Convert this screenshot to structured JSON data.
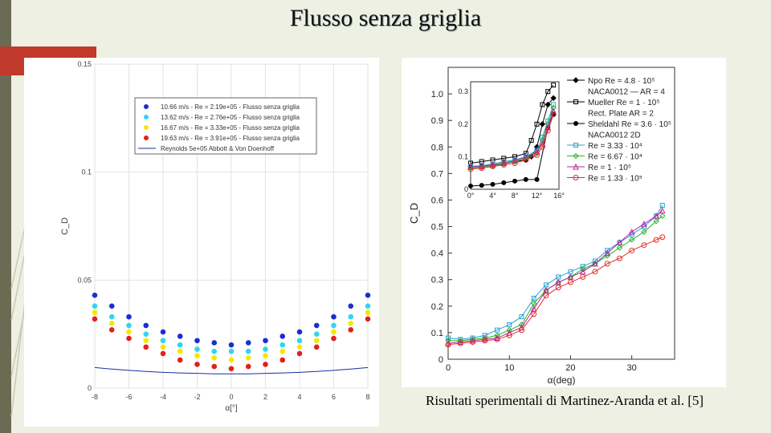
{
  "slide": {
    "title": "Flusso senza griglia",
    "caption": "Risultati sperimentali di Martinez-Aranda et al. [5]"
  },
  "chart_data": [
    {
      "type": "scatter",
      "xlabel": "α[°]",
      "ylabel": "C_D",
      "xlim": [
        -8,
        8
      ],
      "ylim": [
        0,
        0.15
      ],
      "x_ticks": [
        "-8",
        "-6",
        "-4",
        "-2",
        "0",
        "2",
        "4",
        "6",
        "8"
      ],
      "y_ticks": [
        "0",
        "0.05",
        "0.1",
        "0.15"
      ],
      "grid": true,
      "legend_position": "top-left",
      "x": [
        -8,
        -7,
        -6,
        -5,
        -4,
        -3,
        -2,
        -1,
        0,
        1,
        2,
        3,
        4,
        5,
        6,
        7,
        8
      ],
      "series": [
        {
          "name": "10.66 m/s - Re = 2.19e+05 - Flusso senza griglia",
          "color": "#1a2fd0",
          "values": [
            0.043,
            0.038,
            0.033,
            0.029,
            0.026,
            0.024,
            0.022,
            0.021,
            0.02,
            0.021,
            0.022,
            0.024,
            0.026,
            0.029,
            0.033,
            0.038,
            0.043
          ]
        },
        {
          "name": "13.62 m/s - Re = 2.76e+05 - Flusso senza griglia",
          "color": "#2fd6f0",
          "values": [
            0.038,
            0.033,
            0.029,
            0.025,
            0.022,
            0.02,
            0.018,
            0.017,
            0.017,
            0.017,
            0.018,
            0.02,
            0.022,
            0.025,
            0.029,
            0.033,
            0.038
          ]
        },
        {
          "name": "16.67 m/s - Re = 3.33e+05 - Flusso senza griglia",
          "color": "#f5e800",
          "values": [
            0.035,
            0.03,
            0.026,
            0.022,
            0.019,
            0.017,
            0.015,
            0.014,
            0.013,
            0.014,
            0.015,
            0.017,
            0.019,
            0.022,
            0.026,
            0.03,
            0.035
          ]
        },
        {
          "name": "19.63 m/s - Re = 3.91e+05 - Flusso senza griglia",
          "color": "#e0201c",
          "values": [
            0.032,
            0.027,
            0.023,
            0.019,
            0.016,
            0.013,
            0.011,
            0.01,
            0.009,
            0.01,
            0.011,
            0.013,
            0.016,
            0.019,
            0.023,
            0.027,
            0.032
          ]
        },
        {
          "name": "Reynolds 5e+05 Abbott & Von Doenhoff",
          "color": "#1a2f9a",
          "line": true,
          "values": [
            0.0095,
            0.0088,
            0.0082,
            0.0077,
            0.0073,
            0.007,
            0.0068,
            0.0066,
            0.0066,
            0.0066,
            0.0068,
            0.007,
            0.0073,
            0.0077,
            0.0082,
            0.0088,
            0.0095
          ]
        }
      ]
    },
    {
      "type": "line",
      "xlabel": "α(deg)",
      "ylabel": "C_D",
      "xlim": [
        0,
        37
      ],
      "ylim": [
        0,
        1.1
      ],
      "x_ticks": [
        "0",
        "10",
        "20",
        "30"
      ],
      "y_ticks": [
        "0",
        "0.1",
        "0.2",
        "0.3",
        "0.4",
        "0.5",
        "0.6",
        "0.7",
        "0.8",
        "0.9",
        "1.0"
      ],
      "legend_position": "top-right",
      "legend": [
        {
          "label": "Npo Re = 4.8 · 10⁵",
          "color": "#000",
          "marker": "diamond"
        },
        {
          "label": "NACA0012 — AR = 4",
          "color": "#000",
          "marker": "none"
        },
        {
          "label": "Mueller Re = 1 · 10⁵",
          "color": "#000",
          "marker": "square-open"
        },
        {
          "label": "Rect. Plate    AR = 2",
          "color": "#000",
          "marker": "none"
        },
        {
          "label": "Sheldahl Re = 3.6 · 10⁵",
          "color": "#000",
          "marker": "circle"
        },
        {
          "label": "NACA0012    2D",
          "color": "#000",
          "marker": "none"
        },
        {
          "label": "Re = 3.33 · 10⁴",
          "color": "#2a9fd6",
          "marker": "square-open"
        },
        {
          "label": "Re = 6.67 · 10⁴",
          "color": "#22b822",
          "marker": "diamond-open"
        },
        {
          "label": "Re = 1 · 10⁵",
          "color": "#b8269e",
          "marker": "triangle-open"
        },
        {
          "label": "Re = 1.33 · 10⁵",
          "color": "#e0302c",
          "marker": "circle-open"
        }
      ],
      "series": [
        {
          "name": "Re = 3.33 · 10⁴",
          "color": "#2a9fd6",
          "x": [
            0,
            2,
            4,
            6,
            8,
            10,
            12,
            14,
            16,
            18,
            20,
            22,
            24,
            26,
            28,
            30,
            32,
            34,
            35
          ],
          "values": [
            0.08,
            0.075,
            0.08,
            0.09,
            0.11,
            0.13,
            0.16,
            0.23,
            0.28,
            0.31,
            0.33,
            0.35,
            0.37,
            0.41,
            0.44,
            0.47,
            0.5,
            0.54,
            0.58
          ]
        },
        {
          "name": "Re = 6.67 · 10⁴",
          "color": "#22b822",
          "x": [
            0,
            2,
            4,
            6,
            8,
            10,
            12,
            14,
            16,
            18,
            20,
            22,
            24,
            26,
            28,
            30,
            32,
            34,
            35
          ],
          "values": [
            0.07,
            0.07,
            0.075,
            0.08,
            0.09,
            0.11,
            0.13,
            0.21,
            0.26,
            0.29,
            0.31,
            0.34,
            0.36,
            0.39,
            0.42,
            0.45,
            0.48,
            0.52,
            0.54
          ]
        },
        {
          "name": "Re = 1 · 10⁵",
          "color": "#b8269e",
          "x": [
            0,
            2,
            4,
            6,
            8,
            10,
            12,
            14,
            16,
            18,
            20,
            22,
            24,
            26,
            28,
            30,
            32,
            34,
            35
          ],
          "values": [
            0.06,
            0.065,
            0.07,
            0.075,
            0.08,
            0.1,
            0.12,
            0.19,
            0.26,
            0.29,
            0.31,
            0.33,
            0.36,
            0.4,
            0.44,
            0.48,
            0.51,
            0.54,
            0.56
          ]
        },
        {
          "name": "Re = 1.33 · 10⁵",
          "color": "#e0302c",
          "x": [
            0,
            2,
            4,
            6,
            8,
            10,
            12,
            14,
            16,
            18,
            20,
            22,
            24,
            26,
            28,
            30,
            32,
            34,
            35
          ],
          "values": [
            0.055,
            0.06,
            0.065,
            0.07,
            0.075,
            0.09,
            0.11,
            0.17,
            0.24,
            0.27,
            0.29,
            0.31,
            0.33,
            0.36,
            0.38,
            0.41,
            0.43,
            0.45,
            0.46
          ]
        }
      ],
      "inset": {
        "x_ticks": [
          "0°",
          "4°",
          "8°",
          "12°",
          "16°"
        ],
        "y_ticks": [
          "0",
          "0.1",
          "0.2",
          "0.3"
        ],
        "xlim": [
          0,
          16
        ],
        "ylim": [
          0,
          0.33
        ],
        "series": [
          {
            "name": "Npo Re = 4.8 · 10⁵",
            "color": "#000",
            "x": [
              0,
              2,
              4,
              6,
              8,
              10,
              11,
              12,
              13,
              14,
              15
            ],
            "values": [
              0.07,
              0.072,
              0.075,
              0.08,
              0.085,
              0.09,
              0.1,
              0.13,
              0.2,
              0.26,
              0.28
            ]
          },
          {
            "name": "Mueller Re = 1 · 10⁵",
            "color": "#000",
            "x": [
              0,
              2,
              4,
              6,
              8,
              10,
              11,
              12,
              13,
              14,
              15
            ],
            "values": [
              0.08,
              0.085,
              0.09,
              0.095,
              0.1,
              0.11,
              0.15,
              0.2,
              0.26,
              0.3,
              0.32
            ]
          },
          {
            "name": "Sheldahl Re = 3.6 · 10⁵",
            "color": "#000",
            "x": [
              0,
              2,
              4,
              6,
              8,
              10,
              12,
              14,
              15
            ],
            "values": [
              0.01,
              0.012,
              0.015,
              0.02,
              0.025,
              0.03,
              0.03,
              0.19,
              0.23
            ]
          },
          {
            "name": "Re = 3.33 · 10⁴",
            "color": "#2a9fd6",
            "x": [
              0,
              2,
              4,
              6,
              8,
              10,
              12,
              13,
              14,
              15
            ],
            "values": [
              0.07,
              0.072,
              0.078,
              0.085,
              0.09,
              0.1,
              0.12,
              0.16,
              0.21,
              0.26
            ]
          },
          {
            "name": "Re = 6.67 · 10⁴",
            "color": "#22b822",
            "x": [
              0,
              2,
              4,
              6,
              8,
              10,
              12,
              13,
              14,
              15
            ],
            "values": [
              0.065,
              0.068,
              0.072,
              0.078,
              0.085,
              0.095,
              0.11,
              0.15,
              0.2,
              0.25
            ]
          },
          {
            "name": "Re = 1 · 10⁵",
            "color": "#b8269e",
            "x": [
              0,
              2,
              4,
              6,
              8,
              10,
              12,
              13,
              14,
              15
            ],
            "values": [
              0.068,
              0.07,
              0.075,
              0.08,
              0.088,
              0.098,
              0.115,
              0.14,
              0.19,
              0.24
            ]
          },
          {
            "name": "Re = 1.33 · 10⁵",
            "color": "#e0302c",
            "x": [
              0,
              2,
              4,
              6,
              8,
              10,
              12,
              13,
              14,
              15
            ],
            "values": [
              0.062,
              0.065,
              0.07,
              0.075,
              0.08,
              0.09,
              0.105,
              0.13,
              0.18,
              0.23
            ]
          }
        ]
      }
    }
  ]
}
